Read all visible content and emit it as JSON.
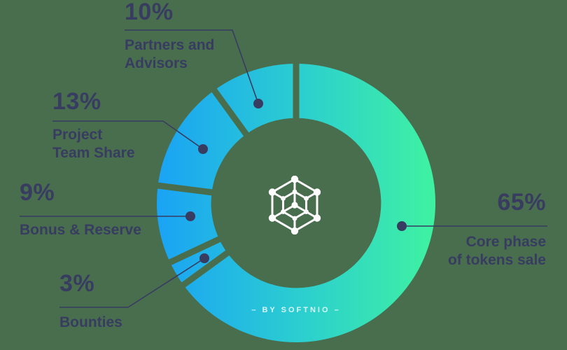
{
  "colors": {
    "background": "#496e4e",
    "ink": "#373c60",
    "gradient_left": "#1aa3f5",
    "gradient_mid": "#2bcdd1",
    "gradient_right": "#3ff2a1",
    "logo": "#ffffff"
  },
  "chart_data": {
    "type": "pie",
    "subtype": "donut",
    "title": "",
    "start_angle_deg": 0,
    "direction": "clockwise",
    "inner_radius_ratio": 0.61,
    "center_icon": "hexagon-network-icon",
    "center_label": "– BY SOFTNIO –",
    "slices": [
      {
        "label": "Core phase of tokens sale",
        "value": 65
      },
      {
        "label": "Bounties",
        "value": 3
      },
      {
        "label": "Bonus & Reserve",
        "value": 9
      },
      {
        "label": "Project Team Share",
        "value": 13
      },
      {
        "label": "Partners and Advisors",
        "value": 10
      }
    ]
  },
  "labels": {
    "partners": {
      "pct": "10%",
      "line1": "Partners and",
      "line2": "Advisors"
    },
    "team": {
      "pct": "13%",
      "line1": "Project",
      "line2": "Team Share"
    },
    "bonus": {
      "pct": "9%",
      "line1": "Bonus & Reserve"
    },
    "bounties": {
      "pct": "3%",
      "line1": "Bounties"
    },
    "core": {
      "pct": "65%",
      "line1": "Core phase",
      "line2": "of tokens sale"
    }
  },
  "byline": "– BY SOFTNIO –"
}
